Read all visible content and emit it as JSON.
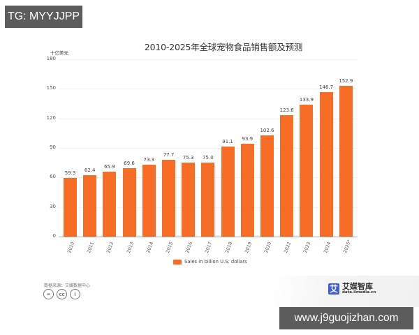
{
  "watermark_top": "TG: MYYJJPP",
  "watermark_bottom": "www.j9guojizhan.com",
  "chart": {
    "title": "2010-2025年全球宠物食品销售额及预测",
    "y_unit": "十亿美元",
    "legend_label": "Sales in billion U.S. dollars",
    "source": "数据来源：艾媒数据中心",
    "brand_name": "艾媒智库",
    "brand_url": "data.iimedia.cn",
    "brand_logo_glyph": "艾",
    "bar_color": "#f76d26",
    "yticks": [
      "0",
      "30",
      "60",
      "90",
      "120",
      "150",
      "180"
    ]
  },
  "chart_data": {
    "type": "bar",
    "title": "2010-2025年全球宠物食品销售额及预测",
    "xlabel": "",
    "ylabel": "十亿美元",
    "ylim": [
      0,
      180
    ],
    "yticks": [
      0,
      30,
      60,
      90,
      120,
      150,
      180
    ],
    "grid": true,
    "legend_position": "bottom",
    "categories": [
      "2010",
      "2011",
      "2012",
      "2013",
      "2014",
      "2015",
      "2016",
      "2017",
      "2018",
      "2019",
      "2020",
      "2022",
      "2023",
      "2024",
      "2025*"
    ],
    "series": [
      {
        "name": "Sales in billion U.S. dollars",
        "color": "#f76d26",
        "values": [
          59.3,
          62.4,
          65.9,
          69.6,
          73.3,
          77.7,
          75.3,
          75.0,
          91.1,
          93.9,
          102.6,
          123.6,
          133.9,
          146.7,
          152.9
        ],
        "labels": [
          "59.3",
          "62.4",
          "65.9",
          "69.6",
          "73.3",
          "77.7",
          "75.3",
          "75.0",
          "91.1",
          "93.9",
          "102.6",
          "123.6",
          "133.9",
          "146.7",
          "152.9"
        ]
      }
    ]
  },
  "footer": {
    "license_icons": [
      "equals-icon",
      "cc-icon",
      "person-icon"
    ],
    "license_glyphs": [
      "=",
      "cc",
      "i"
    ]
  }
}
